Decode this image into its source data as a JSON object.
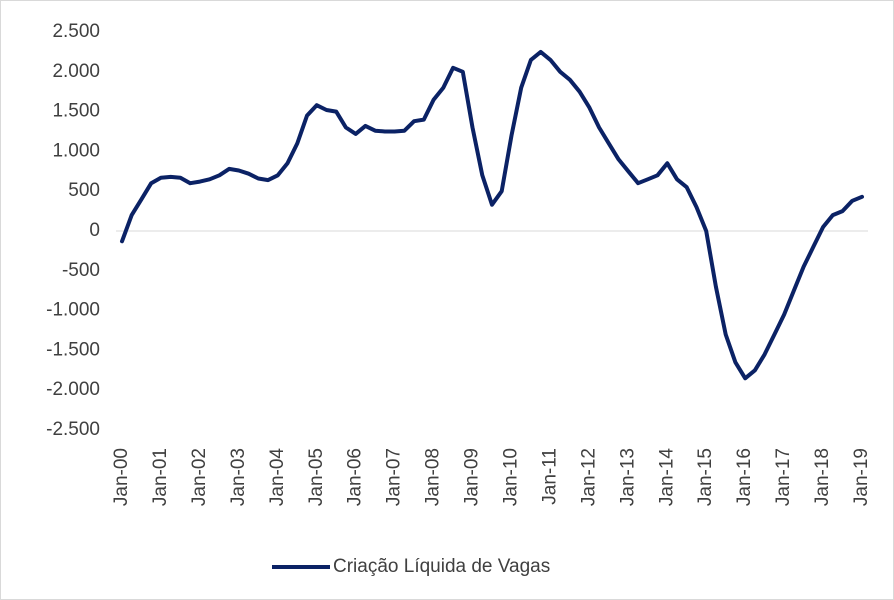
{
  "chart_data": {
    "type": "line",
    "categories": [
      "Jan-00",
      null,
      null,
      null,
      "Jan-01",
      null,
      null,
      null,
      "Jan-02",
      null,
      null,
      null,
      "Jan-03",
      null,
      null,
      null,
      "Jan-04",
      null,
      null,
      null,
      "Jan-05",
      null,
      null,
      null,
      "Jan-06",
      null,
      null,
      null,
      "Jan-07",
      null,
      null,
      null,
      "Jan-08",
      null,
      null,
      null,
      "Jan-09",
      null,
      null,
      null,
      "Jan-10",
      null,
      null,
      null,
      "Jan-11",
      null,
      null,
      null,
      "Jan-12",
      null,
      null,
      null,
      "Jan-13",
      null,
      null,
      null,
      "Jan-14",
      null,
      null,
      null,
      "Jan-15",
      null,
      null,
      null,
      "Jan-16",
      null,
      null,
      null,
      "Jan-17",
      null,
      null,
      null,
      "Jan-18",
      null,
      null,
      null,
      "Jan-19"
    ],
    "series": [
      {
        "name": "Criação Líquida de Vagas",
        "color": "#0b2265",
        "values": [
          -130,
          200,
          400,
          600,
          670,
          680,
          670,
          600,
          620,
          650,
          700,
          780,
          760,
          720,
          660,
          640,
          700,
          850,
          1100,
          1450,
          1580,
          1520,
          1500,
          1300,
          1220,
          1320,
          1260,
          1250,
          1250,
          1260,
          1380,
          1400,
          1650,
          1800,
          2050,
          2000,
          1300,
          700,
          330,
          500,
          1200,
          1800,
          2150,
          2250,
          2150,
          2000,
          1900,
          1750,
          1550,
          1300,
          1100,
          900,
          750,
          600,
          650,
          700,
          850,
          650,
          550,
          300,
          0,
          -700,
          -1300,
          -1650,
          -1850,
          -1750,
          -1550,
          -1300,
          -1050,
          -750,
          -450,
          -200,
          50,
          200,
          250,
          380,
          430
        ]
      }
    ],
    "ylim": [
      -2500,
      2500
    ],
    "yticks": [
      {
        "value": 2500,
        "label": "2.500"
      },
      {
        "value": 2000,
        "label": "2.000"
      },
      {
        "value": 1500,
        "label": "1.500"
      },
      {
        "value": 1000,
        "label": "1.000"
      },
      500,
      0,
      -500,
      {
        "value": -1000,
        "label": "-1.000"
      },
      {
        "value": -1500,
        "label": "-1.500"
      },
      {
        "value": -2000,
        "label": "-2.000"
      },
      {
        "value": -2500,
        "label": "-2.500"
      }
    ],
    "legend": "bottom"
  }
}
